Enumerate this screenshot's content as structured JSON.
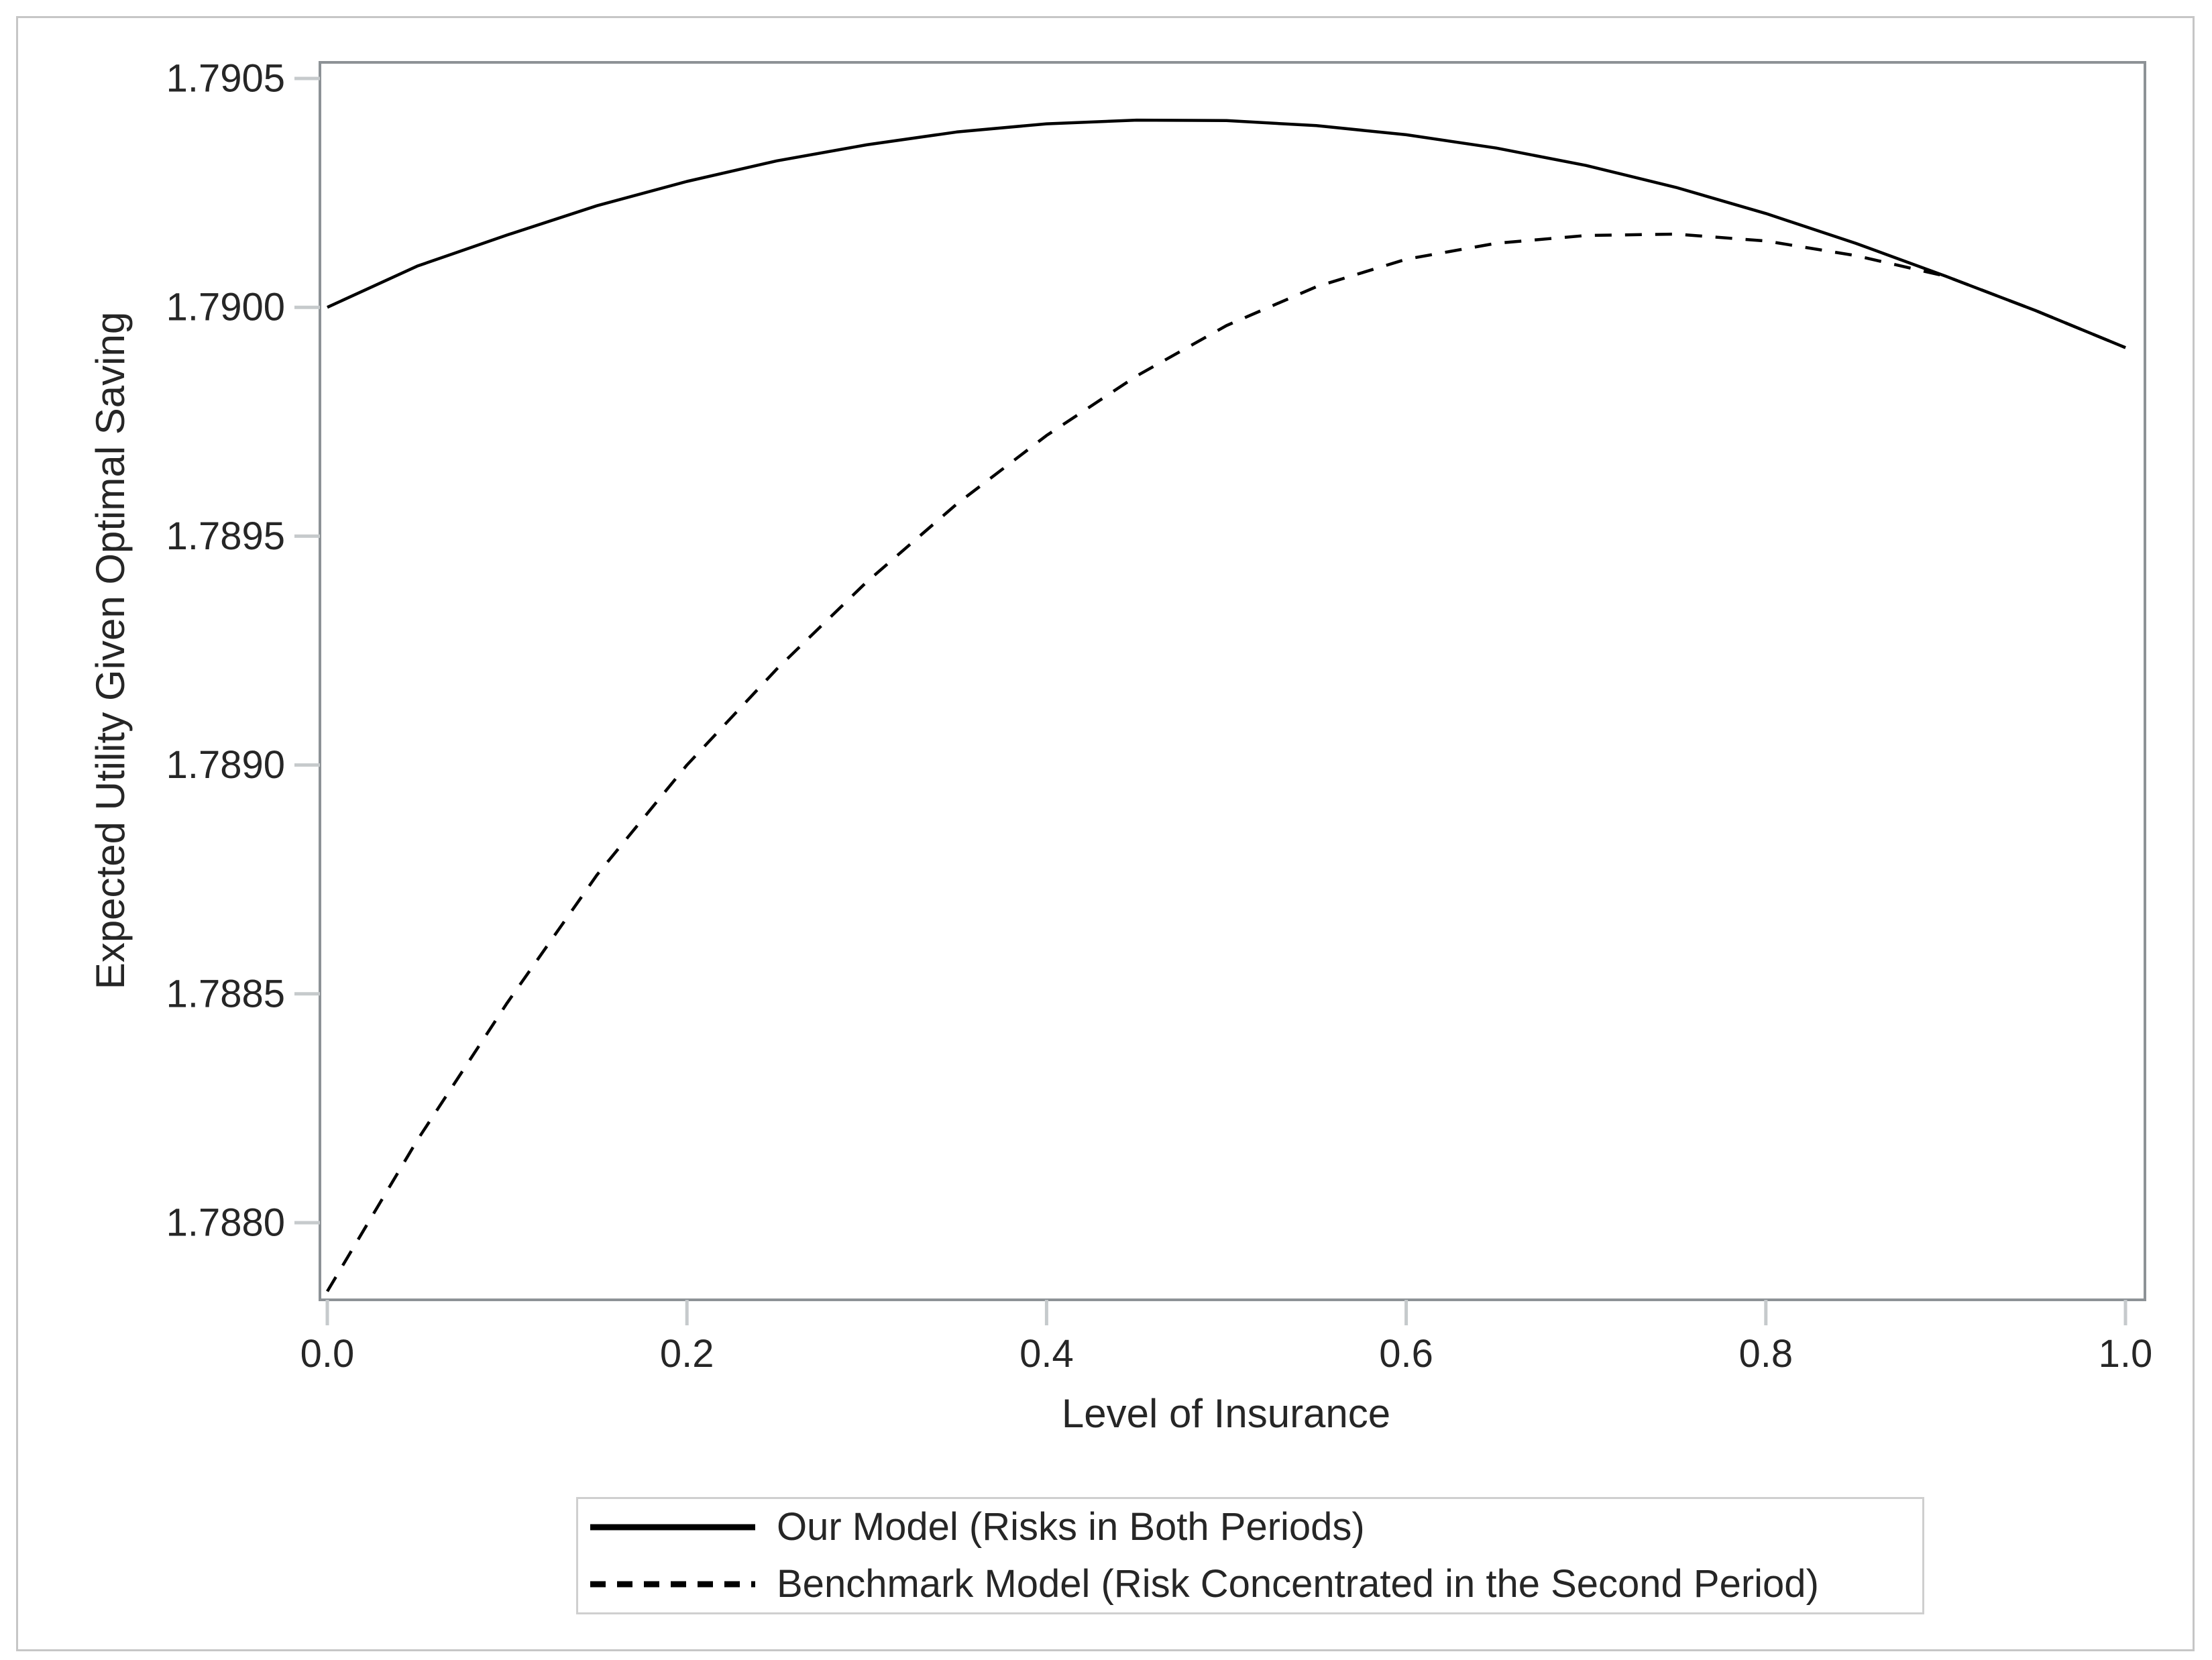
{
  "figure": {
    "background": "#ffffff",
    "border_color": "#c6c6c6"
  },
  "colors": {
    "frame": "#8d9296",
    "tick": "#c6cacc",
    "text": "#262626",
    "line": "#000000"
  },
  "chart_data": {
    "type": "line",
    "title": "",
    "xlabel": "Level of Insurance",
    "ylabel": "Expected Utility Given Optimal Saving",
    "xlim": [
      0.0,
      1.0
    ],
    "ylim": [
      1.78775,
      1.79055
    ],
    "grid": false,
    "legend_position": "bottom-outside",
    "x_ticks": {
      "values": [
        0.0,
        0.2,
        0.4,
        0.6,
        0.8,
        1.0
      ],
      "labels": [
        "0.0",
        "0.2",
        "0.4",
        "0.6",
        "0.8",
        "1.0"
      ]
    },
    "y_ticks": {
      "values": [
        1.788,
        1.7885,
        1.789,
        1.7895,
        1.79,
        1.7905
      ],
      "labels": [
        "1.7880",
        "1.7885",
        "1.7890",
        "1.7895",
        "1.7900",
        "1.7905"
      ]
    },
    "x": [
      0.0,
      0.05,
      0.1,
      0.15,
      0.2,
      0.25,
      0.3,
      0.35,
      0.4,
      0.45,
      0.5,
      0.55,
      0.6,
      0.65,
      0.7,
      0.75,
      0.8,
      0.85,
      0.9,
      0.95,
      1.0
    ],
    "series": [
      {
        "name": "Our Model (Risks in Both Periods)",
        "line_style": "solid",
        "color": "#000000",
        "values": [
          1.79,
          1.79009,
          1.790158,
          1.790222,
          1.790275,
          1.79032,
          1.790355,
          1.790383,
          1.790401,
          1.790409,
          1.790408,
          1.790397,
          1.790377,
          1.790348,
          1.79031,
          1.790262,
          1.790205,
          1.79014,
          1.790068,
          1.789993,
          1.789912
        ],
        "peak": {
          "x": 0.46,
          "y": 1.79041
        }
      },
      {
        "name": "Benchmark Model (Risk Concentrated in the Second Period)",
        "line_style": "dashed",
        "color": "#000000",
        "values": [
          1.78785,
          1.78818,
          1.78848,
          1.78876,
          1.789,
          1.78921,
          1.7894,
          1.78957,
          1.78972,
          1.78985,
          1.78996,
          1.790045,
          1.790105,
          1.79014,
          1.790157,
          1.79016,
          1.790145,
          1.790113,
          1.790068,
          1.789993,
          1.789912
        ],
        "peak": {
          "x": 0.73,
          "y": 1.79016
        }
      }
    ]
  }
}
